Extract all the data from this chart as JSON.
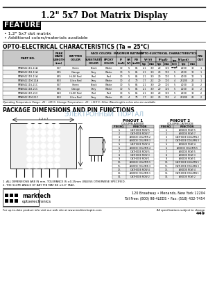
{
  "title": "1.2\" 5x7 Dot Matrix Display",
  "features_title": "FEATURES",
  "features": [
    "1.2\" 5x7 dot matrix",
    "Additional colors/materials available"
  ],
  "opto_title": "OPTO-ELECTRICAL CHARACTERISTICS (Ta = 25°C)",
  "table_data": [
    [
      "MTAN4111S-11A",
      "567",
      "Green",
      "Black",
      "White",
      "30",
      "5",
      "85",
      "2.1",
      "3.0",
      "20",
      "100",
      "5",
      "4000",
      "10",
      "1"
    ],
    [
      "MTAN4111B-11A",
      "635",
      "Orange",
      "Grey",
      "White",
      "30",
      "5",
      "85",
      "2.1",
      "3.0",
      "20",
      "100",
      "5",
      "4000",
      "10",
      "1"
    ],
    [
      "MTAN4111R-11A",
      "635",
      "Hi-Eff Red",
      "Red",
      "Red",
      "30",
      "5",
      "85",
      "2.1",
      "3.0",
      "20",
      "100",
      "5",
      "4000",
      "10",
      "1"
    ],
    [
      "MTAN4111M-11A",
      "660",
      "Ultra Red",
      "Grey",
      "White",
      "30",
      "4",
      "70",
      "1.7",
      "2.2",
      "20",
      "100",
      "4",
      "24200",
      "20",
      "1"
    ],
    [
      "MTAN4111S-21C",
      "567",
      "Green",
      "Black",
      "White",
      "30",
      "5",
      "85",
      "2.1",
      "3.0",
      "20",
      "100",
      "5",
      "4000",
      "10",
      "2"
    ],
    [
      "MTAN4111B-21C",
      "635",
      "Orange",
      "Grey",
      "White",
      "30",
      "5",
      "85",
      "2.1",
      "3.0",
      "20",
      "100",
      "5",
      "4000",
      "10",
      "2"
    ],
    [
      "MTAN4111R-21C",
      "610",
      "Hi-Eff Red",
      "Red",
      "Red",
      "30",
      "5",
      "65",
      "2.1",
      "3.0",
      "20",
      "100",
      "5",
      "4000",
      "10",
      "2"
    ],
    [
      "MTAN4111M-21C",
      "660",
      "Ultra Red",
      "Grey",
      "White",
      "20",
      "4",
      "70",
      "1.7",
      "2.2",
      "20",
      "100",
      "4",
      "24200",
      "20",
      "2"
    ]
  ],
  "note": "Operating Temperature Range: -25~+85°C, Storage Temperature: -25~+110°C, Other Wavelengths colors also are available",
  "package_title": "PACKAGE DIMENSIONS AND PIN FUNCTIONS",
  "watermark": "ЭЛЕКТРОННЫЙ  ПОРТАЛ",
  "pinout1_title": "PINOUT 1",
  "pinout1_sub": "COLUMN-ANODE",
  "pinout2_title": "PINOUT 2",
  "pinout2_sub": "COLUMN-CATHODE",
  "pinout_header": [
    "PIN NO.",
    "FUNCTION"
  ],
  "pinout1_rows": [
    [
      "1.",
      "CATHODE ROW 5"
    ],
    [
      "2.",
      "CATHODE ROW 7"
    ],
    [
      "3.",
      "ANODE COLUMN 2"
    ],
    [
      "4.",
      "ANODE COLUMN 3"
    ],
    [
      "5.",
      "CATHODE ROW 4"
    ],
    [
      "6.",
      "ANODE COLUMN 4"
    ],
    [
      "7.",
      "CATHODE ROW 5"
    ],
    [
      "8.",
      "CATHODE ROW 3"
    ],
    [
      "9.",
      "CATHODE ROW 1"
    ],
    [
      "10.",
      "ANODE COLUMN 5"
    ],
    [
      "11.",
      "ANODE COLUMN 3"
    ],
    [
      "12.",
      "CATHODE ROW 4"
    ],
    [
      "13.",
      "ANODE COLUMN 1"
    ],
    [
      "14.",
      "CATHODE ROW 2"
    ]
  ],
  "pinout2_rows": [
    [
      "1.",
      "ANODE ROW 5"
    ],
    [
      "2.",
      "ANODE ROW 7"
    ],
    [
      "3.",
      "CATHODE COLUMN 2"
    ],
    [
      "4.",
      "CATHODE COLUMN 3"
    ],
    [
      "5.",
      "ANODE ROW 4"
    ],
    [
      "6.",
      "ANODE COLUMN 5"
    ],
    [
      "7.",
      "ANODE ROW 5"
    ],
    [
      "8.",
      "ANODE ROW 3"
    ],
    [
      "9.",
      "ANODE ROW 1"
    ],
    [
      "10.",
      "CATHODE COLUMN 5"
    ],
    [
      "11.",
      "CATHODE COLUMN 3"
    ],
    [
      "12.",
      "ANODE ROW 4"
    ],
    [
      "13.",
      "CATHODE COLUMN 1"
    ],
    [
      "14.",
      "ANODE ROW 2"
    ]
  ],
  "note1": "1. ALL DIMENSIONS ARE IN mm, TOLERANCE IS ±0.25mm UNLESS OTHERWISE SPECIFIED.",
  "note2": "2. THE SLOPE ANGLE OF ANY PIN MAY BE ±5.0° MAX.",
  "footer_address": "120 Broadway • Menands, New York 12204",
  "footer_phone": "Toll Free: (800) 98-4LEDS • Fax: (518) 432-7454",
  "footer_web": "For up-to-date product info visit our web site at www.marktechoptic.com",
  "footer_right": "All specifications subject to change.",
  "page_num": "449",
  "bg_color": "#ffffff"
}
